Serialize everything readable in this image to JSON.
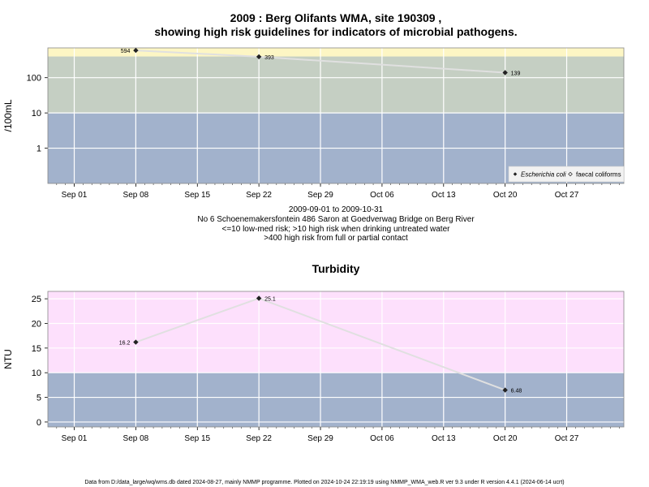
{
  "page": {
    "title_line1": "2009 : Berg Olifants WMA, site 190309 ,",
    "title_line2": "showing high risk guidelines for indicators of microbial pathogens.",
    "date_range": "2009-09-01 to 2009-10-31",
    "site_description": "No 6 Schoenemakersfontein 486 Saron at Goedverwag Bridge on Berg River",
    "guideline_note1": "<=10 low-med risk; >10 high risk when drinking untreated water",
    "guideline_note2": ">400 high risk from full or partial contact",
    "footer": "Data from D:/data_large/wq/wms.db dated 2024-08-27, mainly NMMP programme. Plotted on 2024-10-24 22:19:19 using NMMP_WMA_web.R ver 9.3 under R version 4.4.1 (2024-06-14 ucrt)"
  },
  "colors": {
    "band_low": "#a2b2cc",
    "band_mid": "#c5cfc3",
    "band_high": "#fdf6c4",
    "band_turbidity_high": "#fde0fc",
    "grid": "#ffffff",
    "line": "#e0e0e0",
    "point": "#222222"
  },
  "chart_data": [
    {
      "type": "line",
      "title": "",
      "ylabel": "/100mL",
      "yscale": "log",
      "ylim": [
        0.1,
        700
      ],
      "y_ticks": [
        1,
        10,
        100
      ],
      "y_tick_labels": [
        "1",
        "10",
        "100"
      ],
      "x_ticks": [
        "2009-09-01",
        "2009-09-08",
        "2009-09-15",
        "2009-09-22",
        "2009-09-29",
        "2009-10-06",
        "2009-10-13",
        "2009-10-20",
        "2009-10-27"
      ],
      "x_tick_labels": [
        "Sep 01",
        "Sep 08",
        "Sep 15",
        "Sep 22",
        "Sep 29",
        "Oct 06",
        "Oct 13",
        "Oct 20",
        "Oct 27"
      ],
      "bands": [
        {
          "from": 0.1,
          "to": 10,
          "color": "#a2b2cc"
        },
        {
          "from": 10,
          "to": 400,
          "color": "#c5cfc3"
        },
        {
          "from": 400,
          "to": 700,
          "color": "#fdf6c4"
        }
      ],
      "series": [
        {
          "name": "Escherichia coli",
          "marker": "filled-diamond",
          "x": [
            "2009-09-08",
            "2009-09-22",
            "2009-10-20"
          ],
          "y": [
            594,
            393,
            139
          ],
          "labels": [
            "594",
            "393",
            "139"
          ]
        },
        {
          "name": "faecal coliforms",
          "marker": "open-diamond",
          "x": [],
          "y": []
        }
      ],
      "legend_position": "bottom-right"
    },
    {
      "type": "line",
      "title": "Turbidity",
      "ylabel": "NTU",
      "ylim": [
        -1,
        26.5
      ],
      "y_ticks": [
        0,
        5,
        10,
        15,
        20,
        25
      ],
      "y_tick_labels": [
        "0",
        "5",
        "10",
        "15",
        "20",
        "25"
      ],
      "x_ticks": [
        "2009-09-01",
        "2009-09-08",
        "2009-09-15",
        "2009-09-22",
        "2009-09-29",
        "2009-10-06",
        "2009-10-13",
        "2009-10-20",
        "2009-10-27"
      ],
      "x_tick_labels": [
        "Sep 01",
        "Sep 08",
        "Sep 15",
        "Sep 22",
        "Sep 29",
        "Oct 06",
        "Oct 13",
        "Oct 20",
        "Oct 27"
      ],
      "bands": [
        {
          "from": -1,
          "to": 10,
          "color": "#a2b2cc"
        },
        {
          "from": 10,
          "to": 26.5,
          "color": "#fde0fc"
        }
      ],
      "series": [
        {
          "name": "",
          "x": [
            "2009-09-08",
            "2009-09-22",
            "2009-10-20"
          ],
          "y": [
            16.2,
            25.1,
            6.48
          ],
          "labels": [
            "16.2",
            "25.1",
            "6.48"
          ]
        }
      ]
    }
  ]
}
